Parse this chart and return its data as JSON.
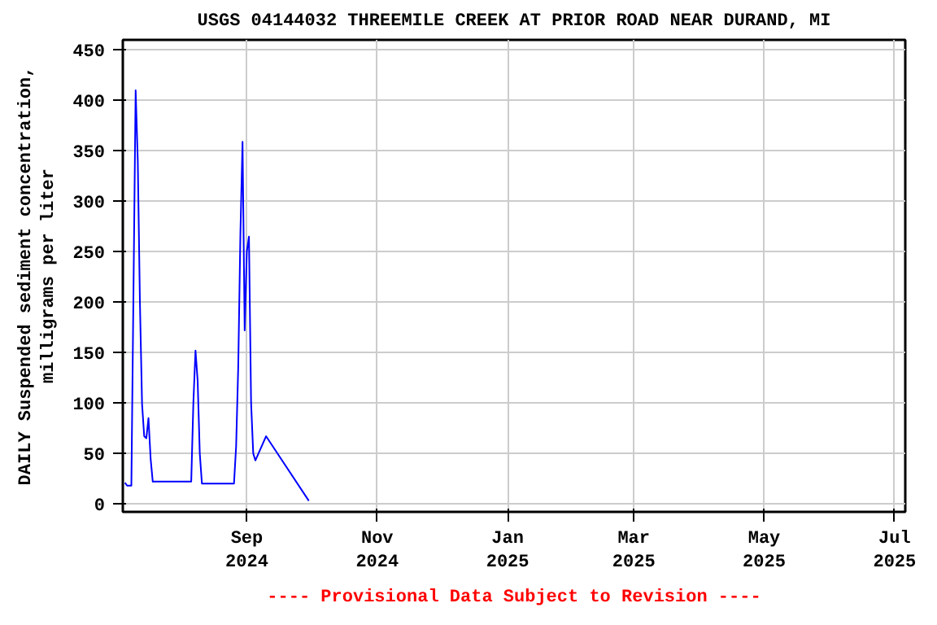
{
  "chart_data": {
    "type": "line",
    "title": "USGS 04144032 THREEMILE CREEK AT PRIOR ROAD NEAR DURAND, MI",
    "ylabel": "DAILY Suspended sediment concentration,\nmilligrams per liter",
    "annotations": [
      "---- Provisional Data Subject to Revision ----"
    ],
    "x": [
      "2024-07-06",
      "2024-07-07",
      "2024-07-09",
      "2024-07-10",
      "2024-07-11",
      "2024-07-12",
      "2024-07-13",
      "2024-07-14",
      "2024-07-15",
      "2024-07-16",
      "2024-07-17",
      "2024-07-18",
      "2024-07-19",
      "2024-08-06",
      "2024-08-07",
      "2024-08-08",
      "2024-08-09",
      "2024-08-10",
      "2024-08-11",
      "2024-08-26",
      "2024-08-27",
      "2024-08-28",
      "2024-08-29",
      "2024-08-30",
      "2024-08-31",
      "2024-09-01",
      "2024-09-02",
      "2024-09-03",
      "2024-09-04",
      "2024-09-05",
      "2024-09-10",
      "2024-09-30"
    ],
    "series": [
      {
        "color": "#0000ff",
        "values": [
          21,
          18,
          18,
          214,
          410,
          340,
          200,
          99,
          67,
          65,
          85,
          45,
          22,
          22,
          100,
          152,
          122,
          50,
          20,
          20,
          57,
          137,
          268,
          359,
          172,
          250,
          265,
          100,
          50,
          43,
          67,
          3
        ]
      }
    ],
    "xlim": [
      "2024-07-05",
      "2025-07-06"
    ],
    "xticks": [
      {
        "value": "2024-09-01",
        "label": "Sep\n2024"
      },
      {
        "value": "2024-11-01",
        "label": "Nov\n2024"
      },
      {
        "value": "2025-01-01",
        "label": "Jan\n2025"
      },
      {
        "value": "2025-03-01",
        "label": "Mar\n2025"
      },
      {
        "value": "2025-05-01",
        "label": "May\n2025"
      },
      {
        "value": "2025-07-01",
        "label": "Jul\n2025"
      }
    ],
    "ylim": [
      -8,
      460
    ],
    "yticks": [
      0,
      50,
      100,
      150,
      200,
      250,
      300,
      350,
      400,
      450
    ],
    "grid": true,
    "marker": "none",
    "line_style": "solid"
  }
}
